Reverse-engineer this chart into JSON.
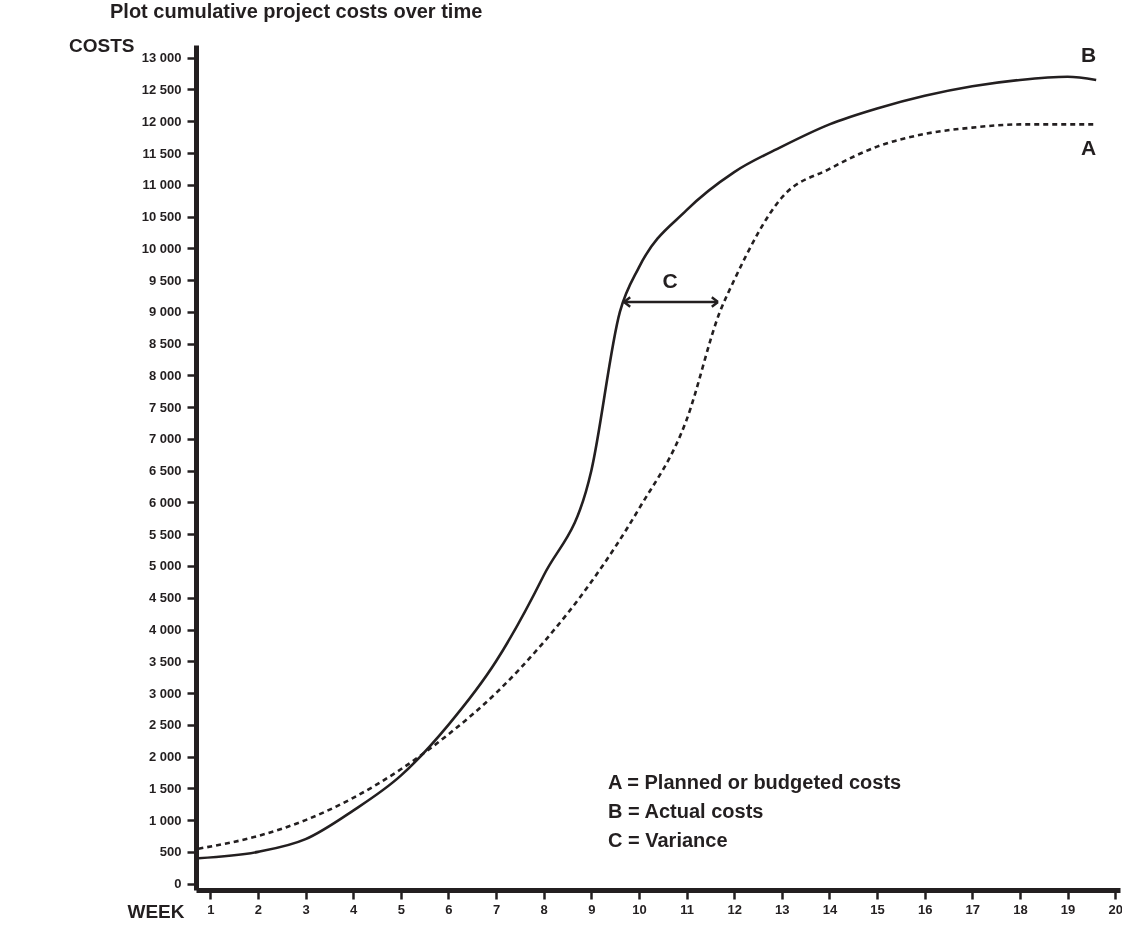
{
  "chart_data": {
    "type": "line",
    "title": "Plot cumulative project costs over time",
    "xlabel": "WEEK",
    "ylabel": "COSTS",
    "x": [
      0.75,
      2,
      3,
      4,
      5,
      6,
      7,
      8,
      9,
      9.6,
      10,
      11,
      12,
      13,
      14,
      15,
      16,
      17,
      18,
      19,
      19.6
    ],
    "series": [
      {
        "name": "B",
        "color": "#231f20",
        "line_style": "solid",
        "values": [
          400,
          500,
          700,
          1150,
          1700,
          2500,
          3500,
          4850,
          6500,
          9000,
          9700,
          10600,
          11200,
          11600,
          11950,
          12200,
          12400,
          12550,
          12650,
          12700,
          12650
        ]
      },
      {
        "name": "A",
        "color": "#231f20",
        "line_style": "dashed",
        "x": [
          0.75,
          2,
          3,
          4,
          5,
          6,
          7,
          8,
          9,
          10,
          11,
          11.7,
          12,
          13,
          14,
          15,
          16,
          17,
          18,
          19,
          19.6
        ],
        "values": [
          550,
          750,
          1000,
          1350,
          1800,
          2350,
          3000,
          3800,
          4750,
          5900,
          7300,
          9000,
          9500,
          10800,
          11250,
          11600,
          11800,
          11900,
          11950,
          11950,
          11950
        ]
      }
    ],
    "xlim": [
      0.7,
      20.1
    ],
    "xticks": [
      1,
      2,
      3,
      4,
      5,
      6,
      7,
      8,
      9,
      10,
      11,
      12,
      13,
      14,
      15,
      16,
      17,
      18,
      19,
      20
    ],
    "ylim": [
      -100,
      13200
    ],
    "yticks": [
      0,
      500,
      {
        "value": 1000,
        "label": "1 000"
      },
      {
        "value": 1500,
        "label": "1 500"
      },
      {
        "value": 2000,
        "label": "2 000"
      },
      {
        "value": 2500,
        "label": "2 500"
      },
      {
        "value": 3000,
        "label": "3 000"
      },
      {
        "value": 3500,
        "label": "3 500"
      },
      {
        "value": 4000,
        "label": "4 000"
      },
      {
        "value": 4500,
        "label": "4 500"
      },
      {
        "value": 5000,
        "label": "5 000"
      },
      {
        "value": 5500,
        "label": "5 500"
      },
      {
        "value": 6000,
        "label": "6 000"
      },
      {
        "value": 6500,
        "label": "6 500"
      },
      {
        "value": 7000,
        "label": "7 000"
      },
      {
        "value": 7500,
        "label": "7 500"
      },
      {
        "value": 8000,
        "label": "8 000"
      },
      {
        "value": 8500,
        "label": "8 500"
      },
      {
        "value": 9000,
        "label": "9 000"
      },
      {
        "value": 9500,
        "label": "9 500"
      },
      {
        "value": 10000,
        "label": "10 000"
      },
      {
        "value": 10500,
        "label": "10 500"
      },
      {
        "value": 11000,
        "label": "11 000"
      },
      {
        "value": 11500,
        "label": "11 500"
      },
      {
        "value": 12000,
        "label": "12 000"
      },
      {
        "value": 12500,
        "label": "12 500"
      },
      {
        "value": 13000,
        "label": "13 000"
      }
    ],
    "annotations": [
      "C",
      "A = Planned or budgeted costs",
      "B = Actual costs",
      "C = Variance"
    ]
  }
}
